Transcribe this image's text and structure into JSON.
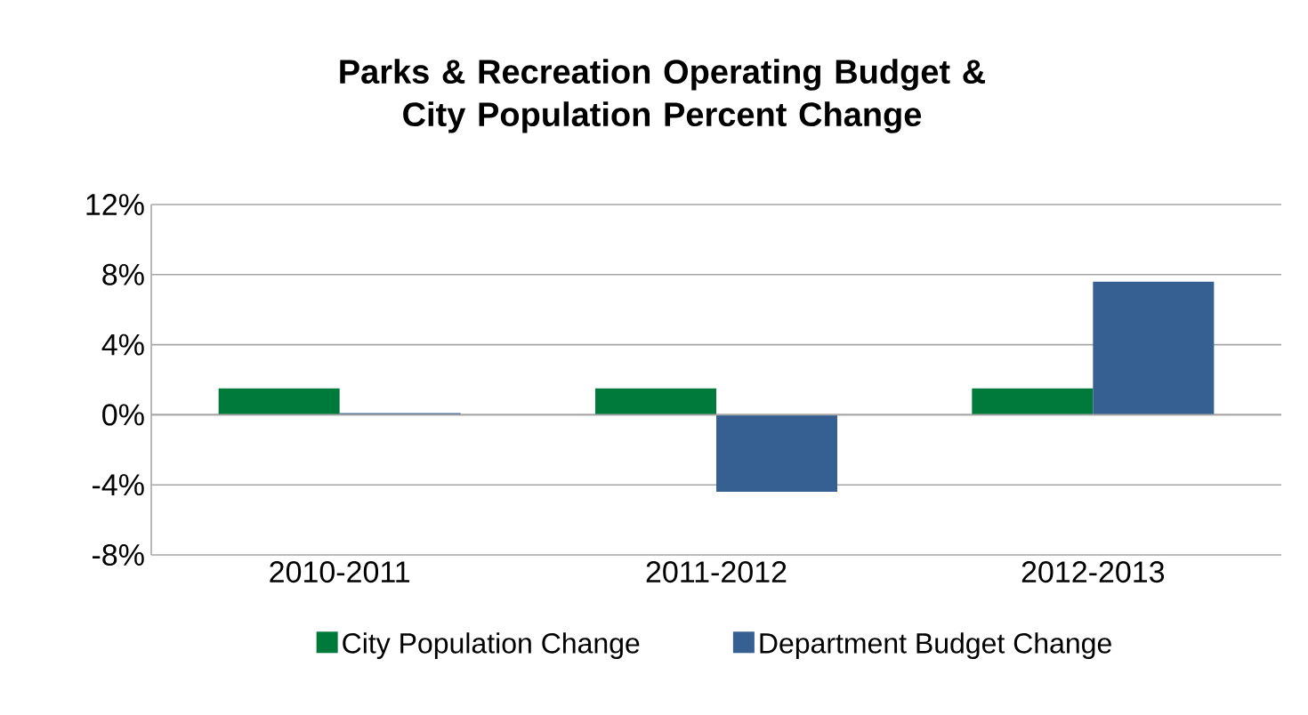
{
  "chart_data": {
    "type": "bar",
    "title": "Parks & Recreation Operating Budget &\nCity Population Percent Change",
    "categories": [
      "2010-2011",
      "2011-2012",
      "2012-2013"
    ],
    "series": [
      {
        "name": "City Population Change",
        "color": "#007a3a",
        "values": [
          1.5,
          1.5,
          1.5
        ]
      },
      {
        "name": "Department Budget Change",
        "color": "#366092",
        "values": [
          0.1,
          -4.4,
          7.6
        ]
      }
    ],
    "ylim": [
      -8,
      12
    ],
    "yticks": [
      {
        "value": -8,
        "label": "-8%"
      },
      {
        "value": -4,
        "label": "-4%"
      },
      {
        "value": 0,
        "label": "0%"
      },
      {
        "value": 4,
        "label": "4%"
      },
      {
        "value": 8,
        "label": "8%"
      },
      {
        "value": 12,
        "label": "12%"
      }
    ],
    "grid": "y",
    "legend": "bottom"
  }
}
